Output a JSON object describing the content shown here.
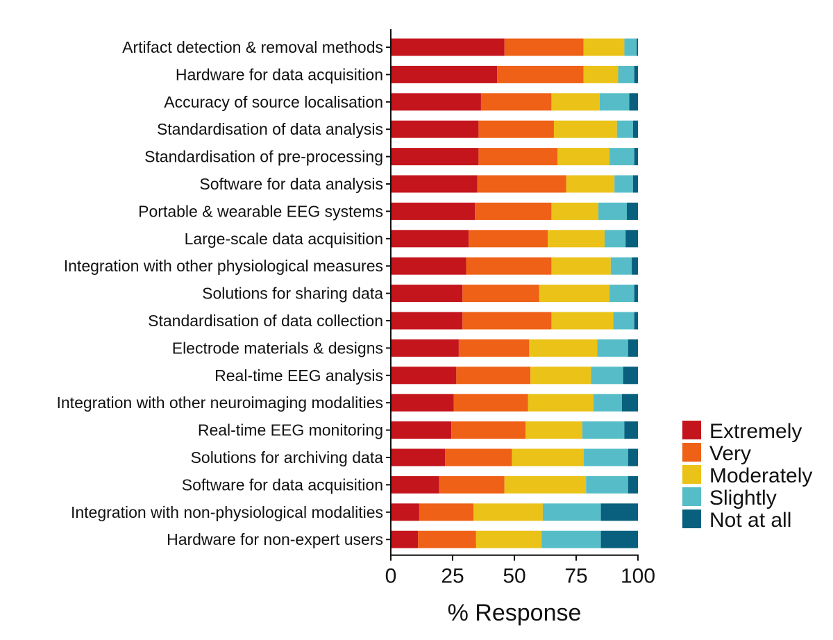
{
  "chart_data": {
    "type": "bar",
    "orientation": "horizontal",
    "stacked": true,
    "xlabel": "% Response",
    "xlim": [
      0,
      100
    ],
    "xticks": [
      "0",
      "25",
      "50",
      "75",
      "100"
    ],
    "legend_placement": "right",
    "categories": [
      "Artifact detection & removal methods",
      "Hardware for data acquisition",
      "Accuracy of source localisation",
      "Standardisation of data analysis",
      "Standardisation of pre-processing",
      "Software for data analysis",
      "Portable & wearable EEG systems",
      "Large-scale data acquisition",
      "Integration with other physiological measures",
      "Solutions for sharing data",
      "Standardisation of data collection",
      "Electrode materials & designs",
      "Real-time EEG analysis",
      "Integration with other neuroimaging modalities",
      "Real-time EEG monitoring",
      "Solutions for archiving data",
      "Software for data acquisition",
      "Integration with non-physiological modalities",
      "Hardware for non-expert users"
    ],
    "series": [
      {
        "name": "Extremely",
        "color": "#C4151C",
        "values": [
          46,
          43,
          36.5,
          35.5,
          35.5,
          35,
          34,
          31.5,
          30.5,
          29,
          29,
          27.5,
          26.5,
          25.5,
          24.5,
          22,
          19.5,
          11.5,
          11
        ]
      },
      {
        "name": "Very",
        "color": "#EE6116",
        "values": [
          32,
          35,
          28.5,
          30.5,
          32,
          36,
          31,
          32,
          34.5,
          31,
          36,
          28.5,
          30,
          30,
          30,
          27,
          26.5,
          22,
          23.5
        ]
      },
      {
        "name": "Moderately",
        "color": "#EBC218",
        "values": [
          16.5,
          14,
          19.5,
          25.5,
          21,
          19.5,
          19,
          23,
          24,
          28.5,
          25,
          27.5,
          24.5,
          26.5,
          23,
          29,
          33,
          28,
          26.5
        ]
      },
      {
        "name": "Slightly",
        "color": "#56BDC8",
        "values": [
          5,
          6.5,
          12,
          6.5,
          10,
          7.5,
          11.5,
          8.5,
          8.5,
          10,
          8.5,
          12.5,
          13,
          11.5,
          17,
          18,
          17,
          23.5,
          24
        ]
      },
      {
        "name": "Not at all",
        "color": "#08607E",
        "values": [
          0.5,
          1.5,
          3.5,
          2,
          1.5,
          2,
          4.5,
          5,
          2.5,
          1.5,
          1.5,
          4,
          6,
          6.5,
          5.5,
          4,
          4,
          15,
          15
        ]
      }
    ]
  }
}
